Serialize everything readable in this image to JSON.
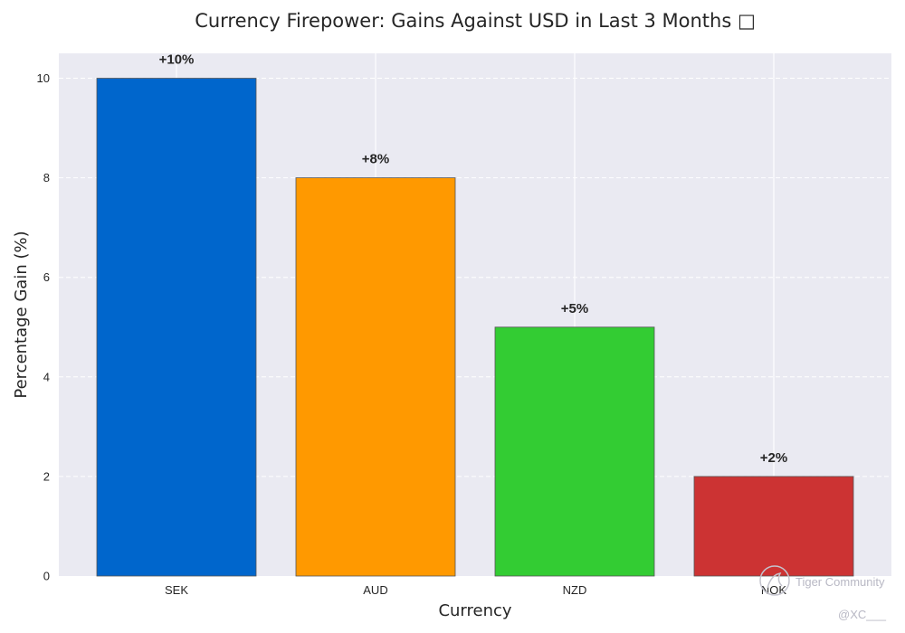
{
  "chart_data": {
    "type": "bar",
    "title": "Currency Firepower: Gains Against USD in Last 3 Months □",
    "xlabel": "Currency",
    "ylabel": "Percentage Gain (%)",
    "categories": [
      "SEK",
      "AUD",
      "NZD",
      "NOK"
    ],
    "values": [
      10,
      8,
      5,
      2
    ],
    "data_labels": [
      "+10%",
      "+8%",
      "+5%",
      "+2%"
    ],
    "colors": [
      "#0066cc",
      "#ff9900",
      "#33cc33",
      "#cc3333"
    ],
    "ylim": [
      0,
      10.5
    ],
    "yticks": [
      0,
      2,
      4,
      6,
      8,
      10
    ],
    "grid": true,
    "legend": "none"
  },
  "style": {
    "plot_background": "#eaeaf2",
    "grid_color": "#ffffff",
    "bar_edge_color": "#555555",
    "text_color": "#262626"
  },
  "watermark": {
    "brand": "Tiger Community",
    "handle": "@XC___"
  }
}
